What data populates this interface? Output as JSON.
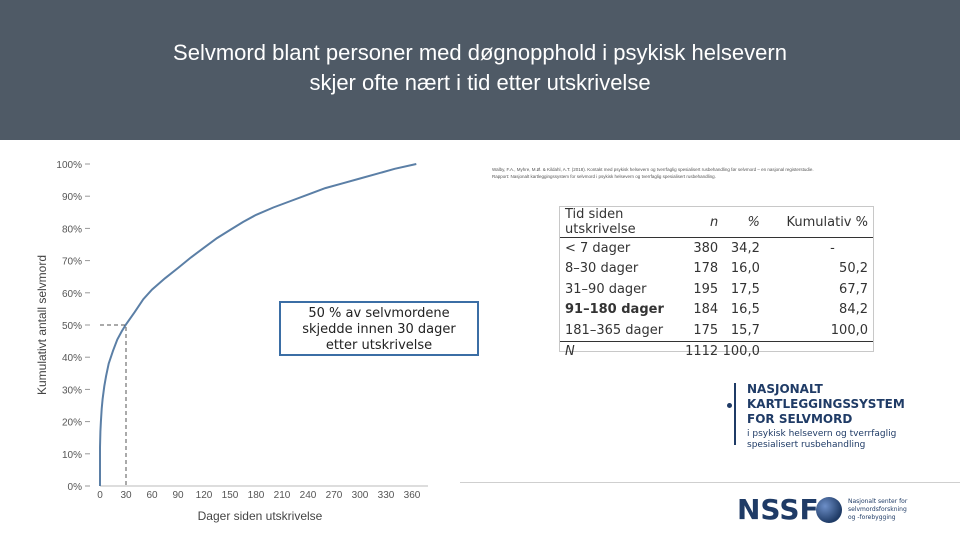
{
  "title": {
    "line1": "Selvmord blant personer med døgnopphold i psykisk helsevern",
    "line2": "skjer ofte nært i tid etter utskrivelse"
  },
  "colors": {
    "header_bg": "#4f5a66",
    "curve": "#5b7fa6",
    "brand": "#1f3b66"
  },
  "chart_data": {
    "type": "line",
    "xlabel": "Dager siden utskrivelse",
    "ylabel": "Kumulativt antall selvmord",
    "xlim": [
      0,
      365
    ],
    "ylim": [
      0,
      100
    ],
    "x_ticks": [
      "0",
      "30",
      "60",
      "90",
      "120",
      "150",
      "180",
      "210",
      "240",
      "270",
      "300",
      "330",
      "360"
    ],
    "y_ticks": [
      "0%",
      "10%",
      "20%",
      "30%",
      "40%",
      "50%",
      "60%",
      "70%",
      "80%",
      "90%",
      "100%"
    ],
    "series": [
      {
        "x": [
          0,
          0,
          0.5,
          1,
          2,
          3,
          5,
          7,
          10,
          15,
          20,
          25,
          30,
          40,
          50,
          60,
          75,
          90,
          105,
          120,
          135,
          150,
          165,
          180,
          200,
          220,
          240,
          260,
          280,
          300,
          320,
          340,
          365
        ],
        "y": [
          0,
          12,
          17,
          20,
          24,
          27,
          31,
          34.2,
          38,
          42,
          45.5,
          48,
          50.2,
          54,
          58,
          61,
          64.5,
          67.7,
          71,
          74,
          77,
          79.5,
          82,
          84.2,
          86.5,
          88.5,
          90.5,
          92.5,
          94,
          95.5,
          97,
          98.5,
          100
        ]
      }
    ],
    "reference": {
      "x": 30,
      "y": 50
    },
    "annotation": {
      "line1": "50 % av selvmordene",
      "line2": "skjedde innen 30 dager",
      "line3": "etter utskrivelse"
    }
  },
  "citation": {
    "line1": "Walby, F.A., Myhre, M.Ø. & Kildahl, A.T. (2018). Kontakt med psykisk helsevern og tverrfaglig spesialisert rusbehandling før selvmord – en nasjonal registerstudie.",
    "line2": "Rapport: Nasjonalt kartleggingssystem for selvmord i psykisk helsevern og tverrfaglig spesialisert rusbehandling."
  },
  "table": {
    "headers": [
      "Tid siden utskrivelse",
      "n",
      "%",
      "Kumulativ %"
    ],
    "rows": [
      {
        "label": "< 7 dager",
        "n": "380",
        "pct": "34,2",
        "cum": "-",
        "bold": false
      },
      {
        "label": "8–30 dager",
        "n": "178",
        "pct": "16,0",
        "cum": "50,2",
        "bold": false
      },
      {
        "label": "31–90 dager",
        "n": "195",
        "pct": "17,5",
        "cum": "67,7",
        "bold": false
      },
      {
        "label": "91–180 dager",
        "n": "184",
        "pct": "16,5",
        "cum": "84,2",
        "bold": true
      },
      {
        "label": "181–365 dager",
        "n": "175",
        "pct": "15,7",
        "cum": "100,0",
        "bold": false
      }
    ],
    "total": {
      "label": "N",
      "n": "1112",
      "pct": "100,0",
      "cum": ""
    }
  },
  "logo": {
    "line1": "NASJONALT",
    "line2": "KARTLEGGINGSSYSTEM",
    "line3": "FOR SELVMORD",
    "sub1": "i psykisk helsevern og tverrfaglig",
    "sub2": "spesialisert rusbehandling"
  },
  "nssf": {
    "name": "NSSF",
    "sub1": "Nasjonalt senter for",
    "sub2": "selvmordsforskning",
    "sub3": "og -forebygging"
  }
}
